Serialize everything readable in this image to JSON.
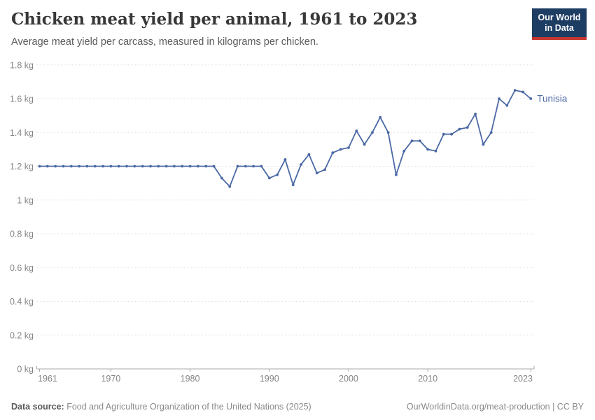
{
  "header": {
    "title": "Chicken meat yield per animal, 1961 to 2023",
    "subtitle": "Average meat yield per carcass, measured in kilograms per chicken.",
    "logo": {
      "line1": "Our World",
      "line2": "in Data"
    }
  },
  "footer": {
    "datasource_label": "Data source:",
    "datasource_text": " Food and Agriculture Organization of the United Nations (2025)",
    "link_text": "OurWorldinData.org/meat-production | CC BY"
  },
  "colors": {
    "line": "#4b69a5",
    "grid": "#e0e0e0",
    "axis": "#a8a8a8",
    "tick_text": "#858585",
    "logo_bg": "#1d3d63",
    "logo_red": "#c7362f"
  },
  "chart_data": {
    "type": "line",
    "title": "Chicken meat yield per animal, 1961 to 2023",
    "subtitle": "Average meat yield per carcass, measured in kilograms per chicken.",
    "xlabel": "",
    "ylabel": "kg",
    "xlim": [
      1961,
      2023
    ],
    "ylim": [
      0,
      1.8
    ],
    "grid": "horizontal-dashed",
    "legend_position": "end-of-line",
    "x_ticks": [
      1961,
      1970,
      1980,
      1990,
      2000,
      2010,
      2023
    ],
    "y_ticks": [
      {
        "v": 0,
        "label": "0 kg"
      },
      {
        "v": 0.2,
        "label": "0.2 kg"
      },
      {
        "v": 0.4,
        "label": "0.4 kg"
      },
      {
        "v": 0.6,
        "label": "0.6 kg"
      },
      {
        "v": 0.8,
        "label": "0.8 kg"
      },
      {
        "v": 1,
        "label": "1 kg"
      },
      {
        "v": 1.2,
        "label": "1.2 kg"
      },
      {
        "v": 1.4,
        "label": "1.4 kg"
      },
      {
        "v": 1.6,
        "label": "1.6 kg"
      },
      {
        "v": 1.8,
        "label": "1.8 kg"
      }
    ],
    "series": [
      {
        "name": "Tunisia",
        "start_year": 1961,
        "values": [
          1.2,
          1.2,
          1.2,
          1.2,
          1.2,
          1.2,
          1.2,
          1.2,
          1.2,
          1.2,
          1.2,
          1.2,
          1.2,
          1.2,
          1.2,
          1.2,
          1.2,
          1.2,
          1.2,
          1.2,
          1.2,
          1.2,
          1.2,
          1.13,
          1.08,
          1.2,
          1.2,
          1.2,
          1.2,
          1.13,
          1.15,
          1.24,
          1.09,
          1.21,
          1.27,
          1.16,
          1.18,
          1.28,
          1.3,
          1.31,
          1.41,
          1.33,
          1.4,
          1.49,
          1.4,
          1.15,
          1.29,
          1.35,
          1.35,
          1.3,
          1.29,
          1.39,
          1.39,
          1.42,
          1.43,
          1.51,
          1.33,
          1.4,
          1.6,
          1.56,
          1.65,
          1.64,
          1.6
        ]
      }
    ]
  }
}
